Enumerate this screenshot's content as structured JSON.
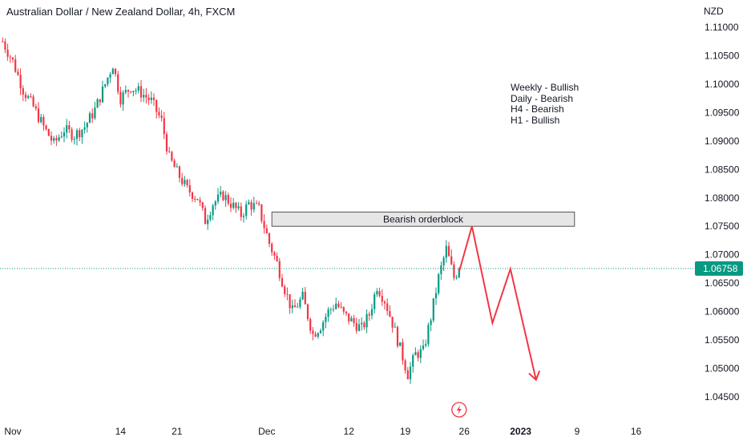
{
  "header": {
    "title": "Australian Dollar / New Zealand Dollar, 4h, FXCM",
    "currency": "NZD"
  },
  "notes": [
    "Weekly - Bullish",
    "Daily - Bearish",
    "H4 - Bearish",
    "H1 - Bullish"
  ],
  "colors": {
    "up": "#089981",
    "down": "#f23645",
    "projection": "#f23645",
    "last_price": "#089981",
    "zone_fill": "#e6e6e6",
    "zone_border": "#555555"
  },
  "icons": {
    "event_marker": "lightning-icon"
  },
  "chart_data": {
    "type": "candlestick",
    "title": "Australian Dollar / New Zealand Dollar, 4h, FXCM",
    "ylabel": "NZD",
    "ylim": [
      1.0435,
      1.1125
    ],
    "y_ticks": [
      "1.11000",
      "1.10500",
      "1.10000",
      "1.09500",
      "1.09000",
      "1.08500",
      "1.08000",
      "1.07500",
      "1.07000",
      "1.06500",
      "1.06000",
      "1.05500",
      "1.05000",
      "1.04500"
    ],
    "x_ticks": [
      {
        "label": "Nov",
        "bar": 4,
        "bold": false
      },
      {
        "label": "14",
        "bar": 46,
        "bold": false
      },
      {
        "label": "21",
        "bar": 68,
        "bold": false
      },
      {
        "label": "Dec",
        "bar": 103,
        "bold": false
      },
      {
        "label": "12",
        "bar": 135,
        "bold": false
      },
      {
        "label": "19",
        "bar": 157,
        "bold": false
      },
      {
        "label": "26",
        "bar": 180,
        "bold": false
      },
      {
        "label": "2023",
        "bar": 202,
        "bold": true
      },
      {
        "label": "9",
        "bar": 224,
        "bold": false
      },
      {
        "label": "16",
        "bar": 247,
        "bold": false
      }
    ],
    "x_range": [
      -3,
      259
    ],
    "last_price": 1.06758,
    "last_price_label": "1.06758",
    "path_points": [
      [
        0,
        1.1075
      ],
      [
        4,
        1.104
      ],
      [
        8,
        1.099
      ],
      [
        12,
        1.096
      ],
      [
        16,
        1.0925
      ],
      [
        20,
        1.0895
      ],
      [
        24,
        1.092
      ],
      [
        28,
        1.091
      ],
      [
        32,
        1.0925
      ],
      [
        36,
        1.0955
      ],
      [
        40,
        1.1
      ],
      [
        43,
        1.1035
      ],
      [
        46,
        1.0975
      ],
      [
        50,
        1.0995
      ],
      [
        54,
        1.0985
      ],
      [
        58,
        1.097
      ],
      [
        62,
        1.0935
      ],
      [
        65,
        1.087
      ],
      [
        68,
        1.0845
      ],
      [
        72,
        1.0815
      ],
      [
        76,
        1.08
      ],
      [
        79,
        1.076
      ],
      [
        82,
        1.079
      ],
      [
        86,
        1.0805
      ],
      [
        90,
        1.0785
      ],
      [
        93,
        1.077
      ],
      [
        96,
        1.079
      ],
      [
        100,
        1.078
      ],
      [
        104,
        1.072
      ],
      [
        107,
        1.0685
      ],
      [
        110,
        1.064
      ],
      [
        113,
        1.06
      ],
      [
        117,
        1.0625
      ],
      [
        121,
        1.056
      ],
      [
        124,
        1.0575
      ],
      [
        127,
        1.06
      ],
      [
        130,
        1.0615
      ],
      [
        133,
        1.0595
      ],
      [
        137,
        1.058
      ],
      [
        140,
        1.057
      ],
      [
        143,
        1.0595
      ],
      [
        146,
        1.0645
      ],
      [
        149,
        1.062
      ],
      [
        152,
        1.058
      ],
      [
        155,
        1.0535
      ],
      [
        158,
        1.049
      ],
      [
        161,
        1.0525
      ],
      [
        164,
        1.053
      ],
      [
        167,
        1.059
      ],
      [
        170,
        1.066
      ],
      [
        173,
        1.071
      ],
      [
        176,
        1.066
      ],
      [
        178,
        1.06758
      ]
    ],
    "zone": {
      "label": "Bearish orderblock",
      "bar_start": 105,
      "bar_end": 223,
      "y_low": 1.075,
      "y_high": 1.0775
    },
    "projection": [
      [
        178,
        1.067
      ],
      [
        183,
        1.075
      ],
      [
        191,
        1.058
      ],
      [
        198,
        1.0675
      ],
      [
        208,
        1.048
      ]
    ],
    "event_marker_bar": 178
  }
}
